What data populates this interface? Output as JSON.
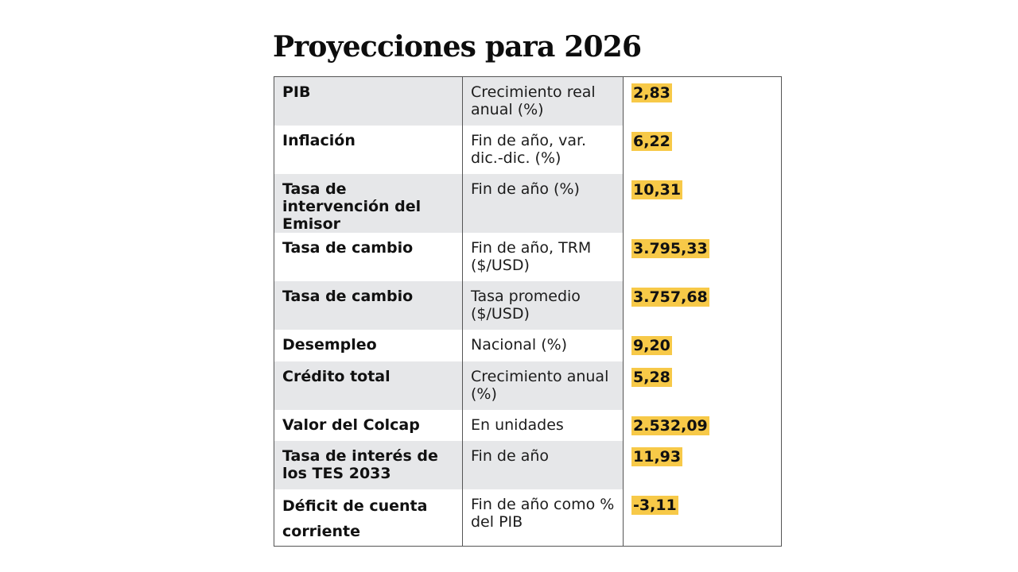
{
  "title": "Proyecciones para 2026",
  "rows": [
    {
      "label": "PIB",
      "desc": "Crecimiento real anual (%)",
      "value": "2,83"
    },
    {
      "label": "Inflación",
      "desc": "Fin de año, var. dic.-dic. (%)",
      "value": "6,22"
    },
    {
      "label": "Tasa de intervención del Emisor",
      "desc": "Fin de año (%)",
      "value": "10,31"
    },
    {
      "label": "Tasa de cambio",
      "desc": "Fin de año, TRM ($/USD)",
      "value": "3.795,33"
    },
    {
      "label": "Tasa de cambio",
      "desc": "Tasa promedio ($/USD)",
      "value": "3.757,68"
    },
    {
      "label": "Desempleo",
      "desc": "Nacional (%)",
      "value": "9,20"
    },
    {
      "label": "Crédito total",
      "desc": "Crecimiento anual (%)",
      "value": "5,28"
    },
    {
      "label": "Valor del Colcap",
      "desc": "En unidades",
      "value": "2.532,09"
    },
    {
      "label": "Tasa de interés de los TES 2033",
      "desc": "Fin de año",
      "value": "11,93"
    },
    {
      "label": "Déficit de cuenta corriente",
      "desc": "Fin de año como % del PIB",
      "value": "-3,11"
    }
  ],
  "colors": {
    "highlight": "#f7c948",
    "row_shade": "#e6e7e9",
    "border": "#555555"
  }
}
